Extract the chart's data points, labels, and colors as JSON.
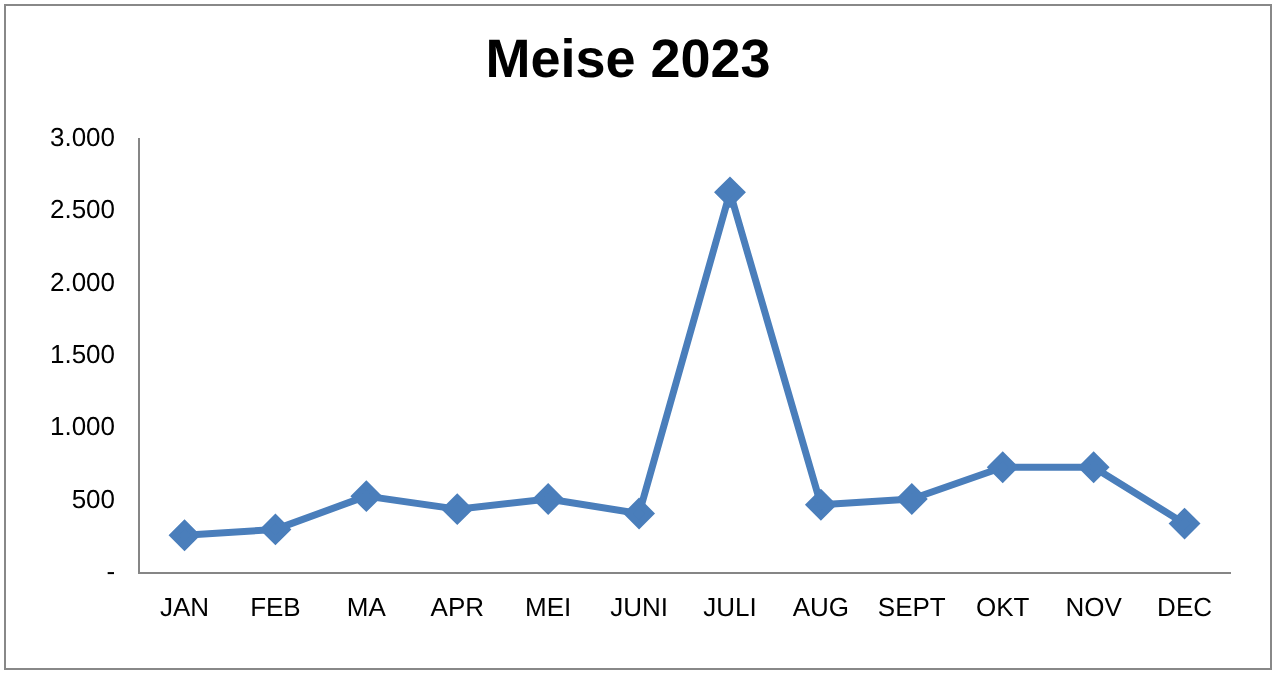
{
  "chart_data": {
    "type": "line",
    "title": "Meise 2023",
    "categories": [
      "JAN",
      "FEB",
      "MA",
      "APR",
      "MEI",
      "JUNI",
      "JULI",
      "AUG",
      "SEPT",
      "OKT",
      "NOV",
      "DEC"
    ],
    "series": [
      {
        "color": "#4a7ebb",
        "values": [
          260,
          300,
          530,
          440,
          510,
          410,
          2630,
          470,
          510,
          730,
          730,
          340
        ]
      }
    ],
    "ylim": [
      0,
      3000
    ],
    "yticks": [
      {
        "value": 0,
        "label": "-"
      },
      500,
      {
        "value": 1000,
        "label": "1.000"
      },
      {
        "value": 1500,
        "label": "1.500"
      },
      {
        "value": 2000,
        "label": "2.000"
      },
      {
        "value": 2500,
        "label": "2.500"
      },
      {
        "value": 3000,
        "label": "3.000"
      }
    ],
    "grid": false,
    "legend": false,
    "marker": "diamond",
    "line_style": "solid"
  }
}
